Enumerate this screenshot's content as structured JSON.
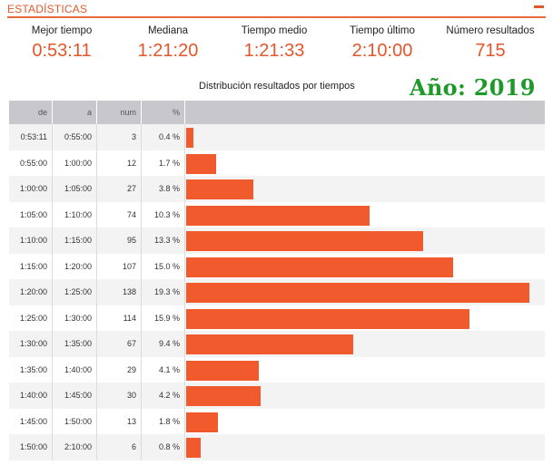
{
  "header": {
    "title": "ESTADÍSTICAS"
  },
  "stats": [
    {
      "label": "Mejor tiempo",
      "value": "0:53:11"
    },
    {
      "label": "Mediana",
      "value": "1:21:20"
    },
    {
      "label": "Tiempo medio",
      "value": "1:21:33"
    },
    {
      "label": "Tiempo último",
      "value": "2:10:00"
    },
    {
      "label": "Número resultados",
      "value": "715"
    }
  ],
  "overlay_text": "Año: 2019",
  "colors": {
    "accent": "#e4562a",
    "bar": "#f15a2c",
    "header_bg": "#c8c8cc",
    "overlay": "#1f9a2a"
  },
  "chart_data": {
    "type": "table",
    "title": "Distribución resultados por tiempos",
    "columns": [
      "de",
      "a",
      "num",
      "%"
    ],
    "rows": [
      {
        "de": "0:53:11",
        "a": "0:55:00",
        "num": 3,
        "pct": 0.4,
        "pct_label": "0.4 %"
      },
      {
        "de": "0:55:00",
        "a": "1:00:00",
        "num": 12,
        "pct": 1.7,
        "pct_label": "1.7 %"
      },
      {
        "de": "1:00:00",
        "a": "1:05:00",
        "num": 27,
        "pct": 3.8,
        "pct_label": "3.8 %"
      },
      {
        "de": "1:05:00",
        "a": "1:10:00",
        "num": 74,
        "pct": 10.3,
        "pct_label": "10.3 %"
      },
      {
        "de": "1:10:00",
        "a": "1:15:00",
        "num": 95,
        "pct": 13.3,
        "pct_label": "13.3 %"
      },
      {
        "de": "1:15:00",
        "a": "1:20:00",
        "num": 107,
        "pct": 15.0,
        "pct_label": "15.0 %"
      },
      {
        "de": "1:20:00",
        "a": "1:25:00",
        "num": 138,
        "pct": 19.3,
        "pct_label": "19.3 %"
      },
      {
        "de": "1:25:00",
        "a": "1:30:00",
        "num": 114,
        "pct": 15.9,
        "pct_label": "15.9 %"
      },
      {
        "de": "1:30:00",
        "a": "1:35:00",
        "num": 67,
        "pct": 9.4,
        "pct_label": "9.4 %"
      },
      {
        "de": "1:35:00",
        "a": "1:40:00",
        "num": 29,
        "pct": 4.1,
        "pct_label": "4.1 %"
      },
      {
        "de": "1:40:00",
        "a": "1:45:00",
        "num": 30,
        "pct": 4.2,
        "pct_label": "4.2 %"
      },
      {
        "de": "1:45:00",
        "a": "1:50:00",
        "num": 13,
        "pct": 1.8,
        "pct_label": "1.8 %"
      },
      {
        "de": "1:50:00",
        "a": "2:10:00",
        "num": 6,
        "pct": 0.8,
        "pct_label": "0.8 %"
      }
    ]
  }
}
